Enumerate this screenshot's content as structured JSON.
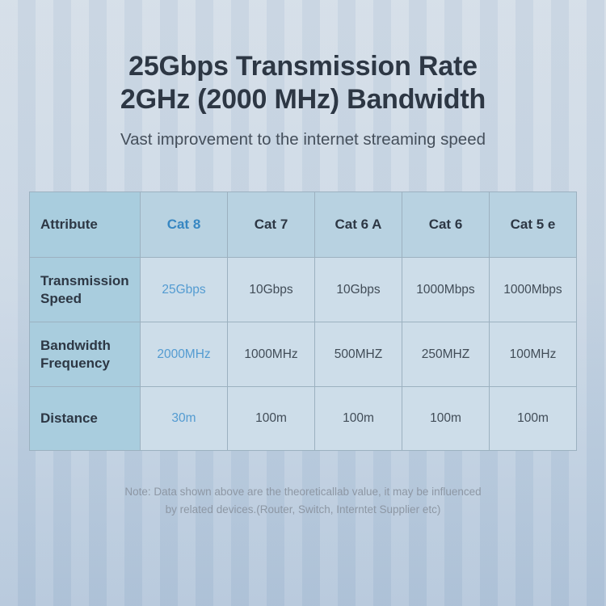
{
  "page": {
    "title_line1": "25Gbps Transmission Rate",
    "title_line2": "2GHz (2000 MHz) Bandwidth",
    "subtitle": "Vast improvement to the internet streaming speed",
    "note_line1": "Note: Data shown above are the theoreticallab value, it may be influenced",
    "note_line2": "by related devices.(Router, Switch, Interntet Supplier etc)"
  },
  "table": {
    "header": [
      "Attribute",
      "Cat 8",
      "Cat 7",
      "Cat 6 A",
      "Cat 6",
      "Cat 5 e"
    ],
    "rows": [
      {
        "label": "Transmission Speed",
        "values": [
          "25Gbps",
          "10Gbps",
          "10Gbps",
          "1000Mbps",
          "1000Mbps"
        ]
      },
      {
        "label": "Bandwidth Frequency",
        "values": [
          "2000MHz",
          "1000MHz",
          "500MHZ",
          "250MHZ",
          "100MHz"
        ]
      },
      {
        "label": "Distance",
        "values": [
          "30m",
          "100m",
          "100m",
          "100m",
          "100m"
        ]
      }
    ]
  },
  "colors": {
    "accent_blue_header": "#3787c2",
    "accent_blue_value": "#539bd1",
    "title_text": "#2d3744",
    "subtitle_text": "#454f5b",
    "body_text": "#414c57",
    "note_text": "#8d97a4",
    "label_column_bg": "#a9cdde",
    "header_row_bg": "#b8d2e1",
    "body_cell_bg": "#cddde9",
    "grid_line": "#9cb1c0",
    "background_top": "#d2dce7",
    "background_bottom": "#b1c4d9"
  },
  "chart_data": {
    "type": "table",
    "title": "25Gbps Transmission Rate 2GHz (2000 MHz) Bandwidth",
    "subtitle": "Vast improvement to the internet streaming speed",
    "columns": [
      "Attribute",
      "Cat 8",
      "Cat 7",
      "Cat 6 A",
      "Cat 6",
      "Cat 5 e"
    ],
    "rows": [
      [
        "Transmission Speed",
        "25Gbps",
        "10Gbps",
        "10Gbps",
        "1000Mbps",
        "1000Mbps"
      ],
      [
        "Bandwidth Frequency",
        "2000MHz",
        "1000MHz",
        "500MHZ",
        "250MHZ",
        "100MHz"
      ],
      [
        "Distance",
        "30m",
        "100m",
        "100m",
        "100m",
        "100m"
      ]
    ],
    "highlight_column": "Cat 8",
    "note": "Note: Data shown above are the theoreticallab value, it may be influenced by related devices.(Router, Switch, Interntet Supplier etc)"
  }
}
